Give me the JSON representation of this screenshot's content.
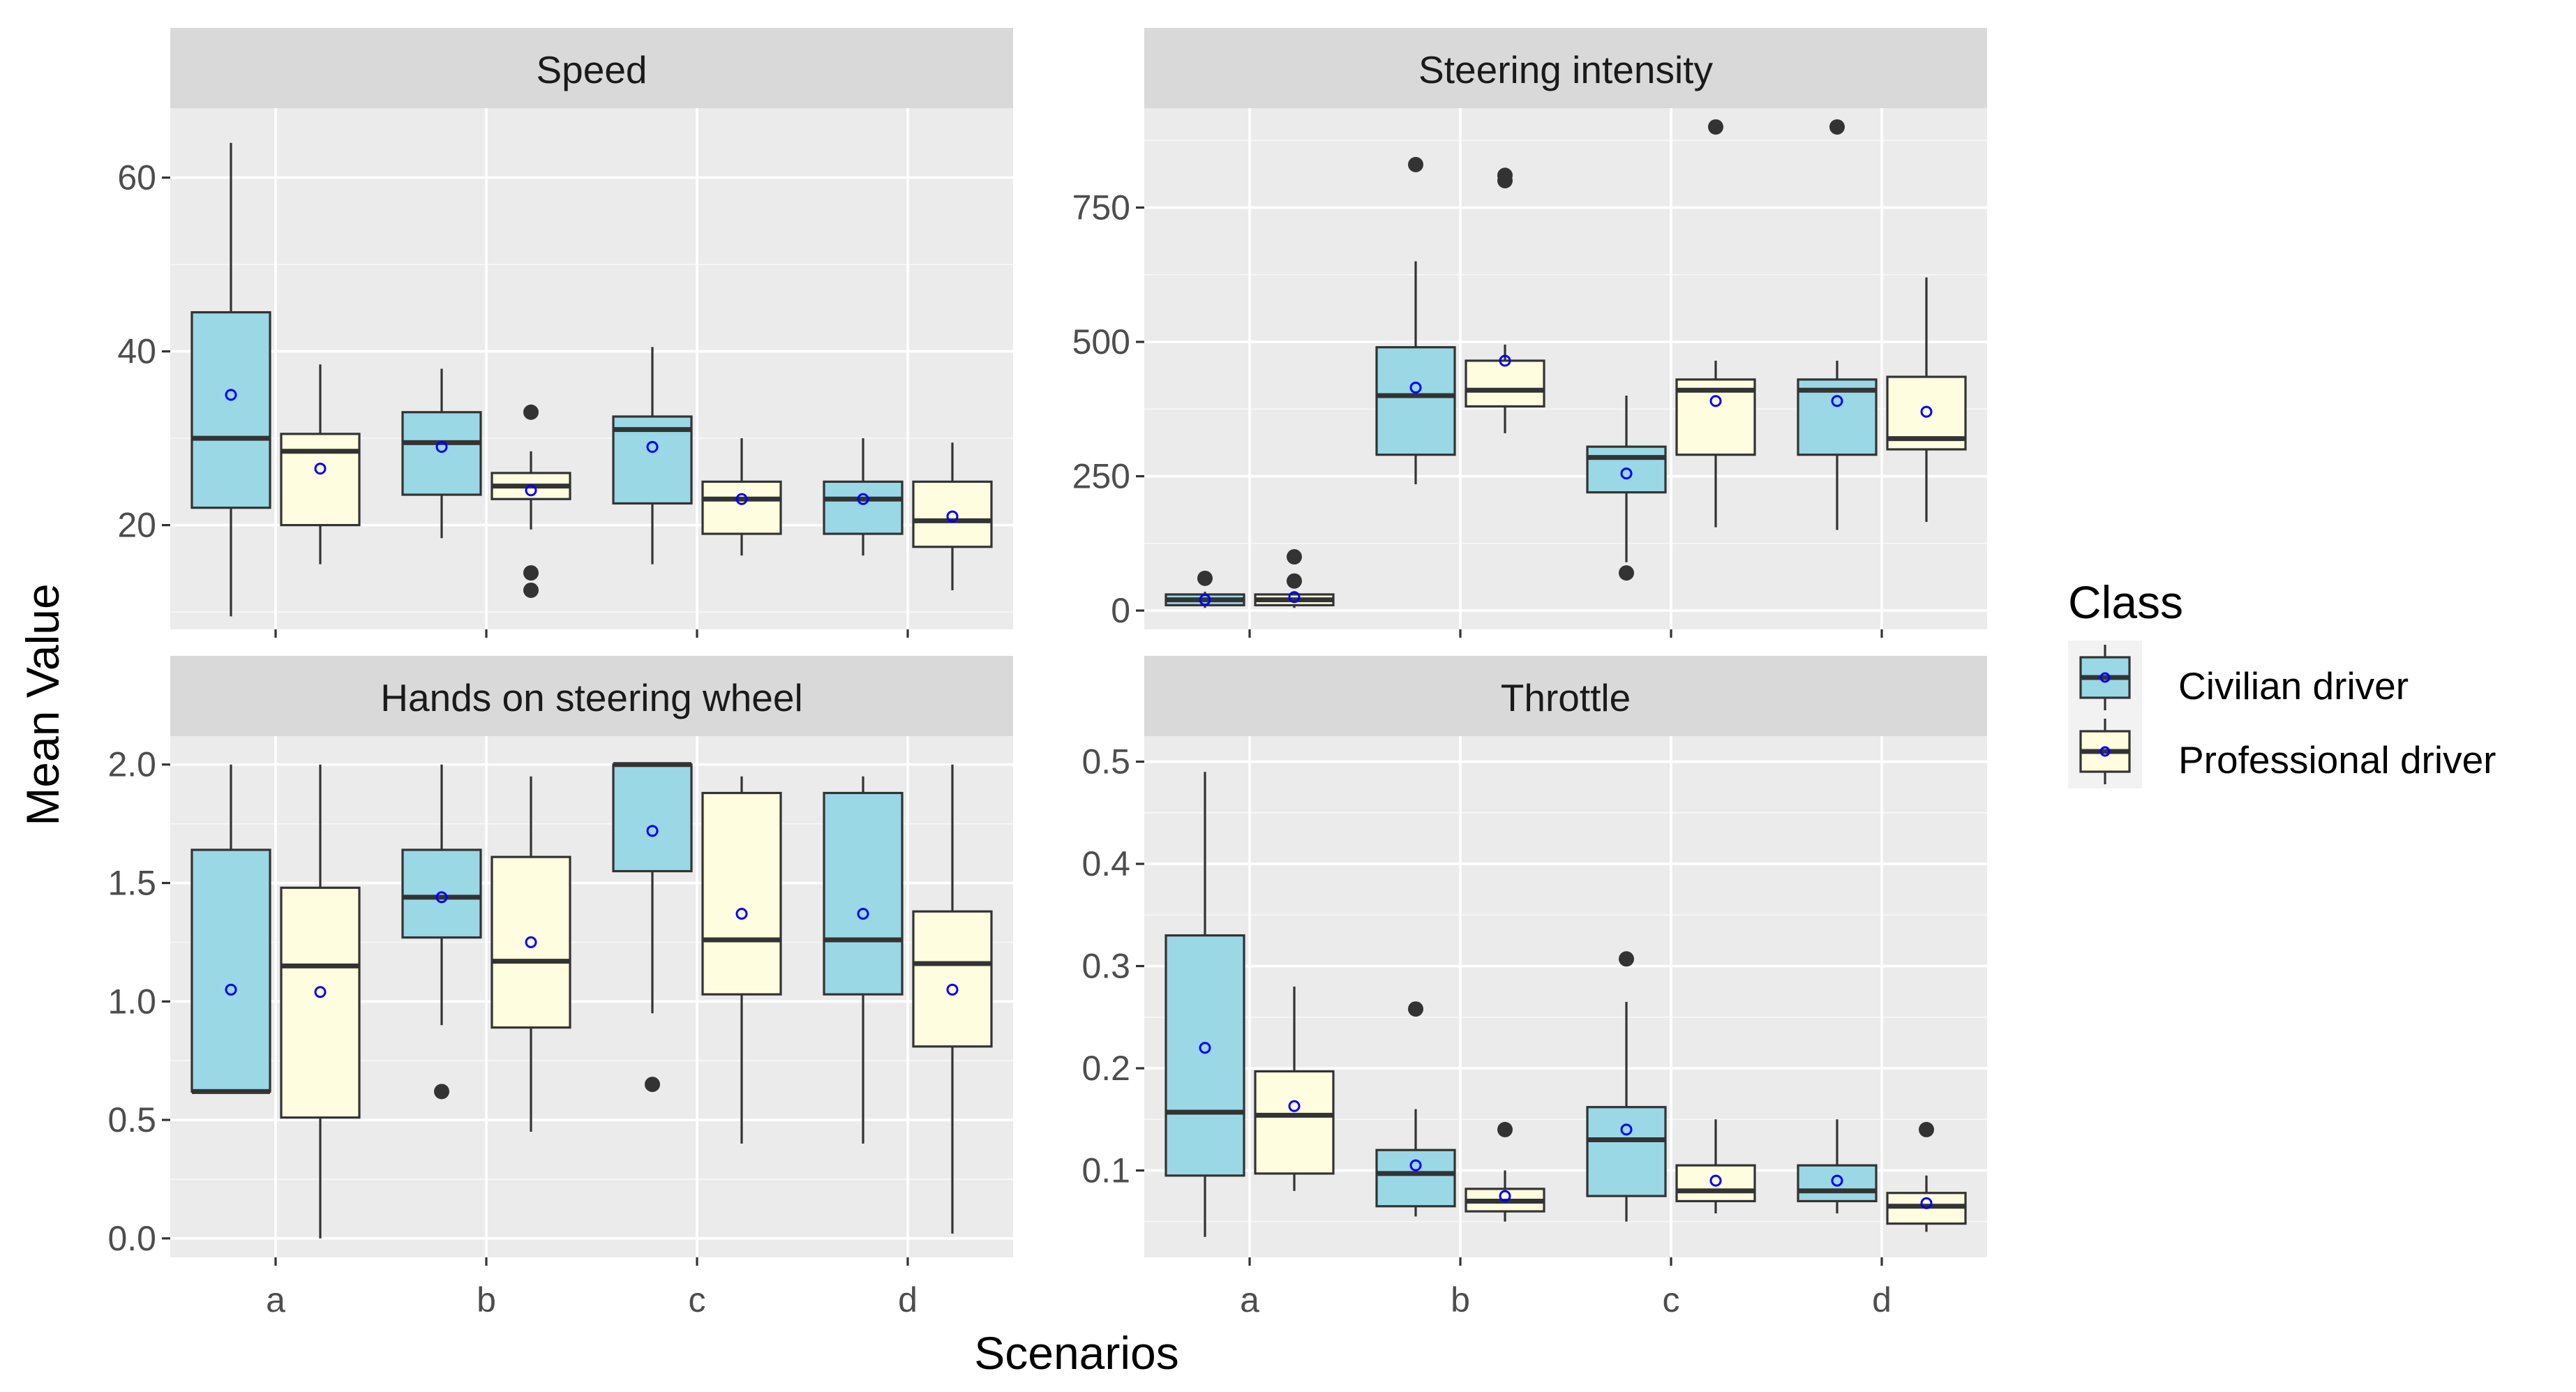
{
  "chart_data": {
    "type": "boxplot",
    "facets": [
      "Speed",
      "Steering intensity",
      "Hands on steering wheel",
      "Throttle"
    ],
    "xlabel": "Scenarios",
    "ylabel": "Mean Value",
    "categories": [
      "a",
      "b",
      "c",
      "d"
    ],
    "legend": {
      "title": "Class",
      "position": "right",
      "items": [
        {
          "name": "Civilian driver",
          "fill": "#9ad8e6"
        },
        {
          "name": "Professional driver",
          "fill": "#fffde0"
        }
      ]
    },
    "mean_marker_color": "#0000ff",
    "panels": [
      {
        "title": "Speed",
        "ylim": [
          8,
          68
        ],
        "yticks": [
          20,
          40,
          60
        ],
        "ytick_labels": [
          "20",
          "40",
          "60"
        ],
        "series": [
          {
            "name": "Civilian driver",
            "boxes": [
              {
                "category": "a",
                "min": 9.5,
                "q1": 22,
                "median": 30,
                "q3": 44.5,
                "max": 64,
                "mean": 35,
                "outliers": []
              },
              {
                "category": "b",
                "min": 18.5,
                "q1": 23.5,
                "median": 29.5,
                "q3": 33,
                "max": 38,
                "mean": 29,
                "outliers": []
              },
              {
                "category": "c",
                "min": 15.5,
                "q1": 22.5,
                "median": 31,
                "q3": 32.5,
                "max": 40.5,
                "mean": 29,
                "outliers": []
              },
              {
                "category": "d",
                "min": 16.5,
                "q1": 19,
                "median": 23,
                "q3": 25,
                "max": 30,
                "mean": 23,
                "outliers": []
              }
            ]
          },
          {
            "name": "Professional driver",
            "boxes": [
              {
                "category": "a",
                "min": 15.5,
                "q1": 20,
                "median": 28.5,
                "q3": 30.5,
                "max": 38.5,
                "mean": 26.5,
                "outliers": []
              },
              {
                "category": "b",
                "min": 19.5,
                "q1": 23,
                "median": 24.5,
                "q3": 26,
                "max": 28.5,
                "mean": 24,
                "outliers": [
                  33,
                  14.5,
                  12.5
                ]
              },
              {
                "category": "c",
                "min": 16.5,
                "q1": 19,
                "median": 23,
                "q3": 25,
                "max": 30,
                "mean": 23,
                "outliers": []
              },
              {
                "category": "d",
                "min": 12.5,
                "q1": 17.5,
                "median": 20.5,
                "q3": 25,
                "max": 29.5,
                "mean": 21,
                "outliers": []
              }
            ]
          }
        ]
      },
      {
        "title": "Steering intensity",
        "ylim": [
          -35,
          935
        ],
        "yticks": [
          0,
          250,
          500,
          750
        ],
        "ytick_labels": [
          "0",
          "250",
          "500",
          "750"
        ],
        "series": [
          {
            "name": "Civilian driver",
            "boxes": [
              {
                "category": "a",
                "min": 5,
                "q1": 10,
                "median": 20,
                "q3": 30,
                "max": 35,
                "mean": 20,
                "outliers": [
                  60
                ]
              },
              {
                "category": "b",
                "min": 235,
                "q1": 290,
                "median": 400,
                "q3": 490,
                "max": 650,
                "mean": 415,
                "outliers": [
                  830
                ]
              },
              {
                "category": "c",
                "min": 90,
                "q1": 220,
                "median": 285,
                "q3": 305,
                "max": 400,
                "mean": 255,
                "outliers": [
                  70
                ]
              },
              {
                "category": "d",
                "min": 150,
                "q1": 290,
                "median": 410,
                "q3": 430,
                "max": 465,
                "mean": 390,
                "outliers": [
                  900
                ]
              }
            ]
          },
          {
            "name": "Professional driver",
            "boxes": [
              {
                "category": "a",
                "min": 5,
                "q1": 10,
                "median": 20,
                "q3": 30,
                "max": 35,
                "mean": 25,
                "outliers": [
                  100,
                  55
                ]
              },
              {
                "category": "b",
                "min": 330,
                "q1": 380,
                "median": 410,
                "q3": 465,
                "max": 495,
                "mean": 465,
                "outliers": [
                  810,
                  800
                ]
              },
              {
                "category": "c",
                "min": 155,
                "q1": 290,
                "median": 410,
                "q3": 430,
                "max": 465,
                "mean": 390,
                "outliers": [
                  900
                ]
              },
              {
                "category": "d",
                "min": 165,
                "q1": 300,
                "median": 320,
                "q3": 435,
                "max": 620,
                "mean": 370,
                "outliers": []
              }
            ]
          }
        ]
      },
      {
        "title": "Hands on steering wheel",
        "ylim": [
          -0.08,
          2.12
        ],
        "yticks": [
          0.0,
          0.5,
          1.0,
          1.5,
          2.0
        ],
        "ytick_labels": [
          "0.0",
          "0.5",
          "1.0",
          "1.5",
          "2.0"
        ],
        "series": [
          {
            "name": "Civilian driver",
            "boxes": [
              {
                "category": "a",
                "min": 0.62,
                "q1": 0.62,
                "median": 0.62,
                "q3": 1.64,
                "max": 2.0,
                "mean": 1.05,
                "outliers": []
              },
              {
                "category": "b",
                "min": 0.9,
                "q1": 1.27,
                "median": 1.44,
                "q3": 1.64,
                "max": 2.0,
                "mean": 1.44,
                "outliers": [
                  0.62
                ]
              },
              {
                "category": "c",
                "min": 0.95,
                "q1": 1.55,
                "median": 2.0,
                "q3": 2.0,
                "max": 2.0,
                "mean": 1.72,
                "outliers": [
                  0.65
                ]
              },
              {
                "category": "d",
                "min": 0.4,
                "q1": 1.03,
                "median": 1.26,
                "q3": 1.88,
                "max": 1.95,
                "mean": 1.37,
                "outliers": []
              }
            ]
          },
          {
            "name": "Professional driver",
            "boxes": [
              {
                "category": "a",
                "min": 0.0,
                "q1": 0.51,
                "median": 1.15,
                "q3": 1.48,
                "max": 2.0,
                "mean": 1.04,
                "outliers": []
              },
              {
                "category": "b",
                "min": 0.45,
                "q1": 0.89,
                "median": 1.17,
                "q3": 1.61,
                "max": 1.95,
                "mean": 1.25,
                "outliers": []
              },
              {
                "category": "c",
                "min": 0.4,
                "q1": 1.03,
                "median": 1.26,
                "q3": 1.88,
                "max": 1.95,
                "mean": 1.37,
                "outliers": []
              },
              {
                "category": "d",
                "min": 0.02,
                "q1": 0.81,
                "median": 1.16,
                "q3": 1.38,
                "max": 2.0,
                "mean": 1.05,
                "outliers": []
              }
            ]
          }
        ]
      },
      {
        "title": "Throttle",
        "ylim": [
          0.015,
          0.525
        ],
        "yticks": [
          0.1,
          0.2,
          0.3,
          0.4,
          0.5
        ],
        "ytick_labels": [
          "0.1",
          "0.2",
          "0.3",
          "0.4",
          "0.5"
        ],
        "series": [
          {
            "name": "Civilian driver",
            "boxes": [
              {
                "category": "a",
                "min": 0.035,
                "q1": 0.095,
                "median": 0.157,
                "q3": 0.33,
                "max": 0.49,
                "mean": 0.22,
                "outliers": []
              },
              {
                "category": "b",
                "min": 0.055,
                "q1": 0.065,
                "median": 0.097,
                "q3": 0.12,
                "max": 0.16,
                "mean": 0.105,
                "outliers": [
                  0.258
                ]
              },
              {
                "category": "c",
                "min": 0.05,
                "q1": 0.075,
                "median": 0.13,
                "q3": 0.162,
                "max": 0.265,
                "mean": 0.14,
                "outliers": [
                  0.307
                ]
              },
              {
                "category": "d",
                "min": 0.058,
                "q1": 0.07,
                "median": 0.08,
                "q3": 0.105,
                "max": 0.15,
                "mean": 0.09,
                "outliers": []
              }
            ]
          },
          {
            "name": "Professional driver",
            "boxes": [
              {
                "category": "a",
                "min": 0.08,
                "q1": 0.097,
                "median": 0.154,
                "q3": 0.197,
                "max": 0.28,
                "mean": 0.163,
                "outliers": []
              },
              {
                "category": "b",
                "min": 0.05,
                "q1": 0.06,
                "median": 0.07,
                "q3": 0.082,
                "max": 0.1,
                "mean": 0.075,
                "outliers": [
                  0.14
                ]
              },
              {
                "category": "c",
                "min": 0.058,
                "q1": 0.07,
                "median": 0.08,
                "q3": 0.105,
                "max": 0.15,
                "mean": 0.09,
                "outliers": []
              },
              {
                "category": "d",
                "min": 0.04,
                "q1": 0.048,
                "median": 0.065,
                "q3": 0.078,
                "max": 0.095,
                "mean": 0.068,
                "outliers": [
                  0.14
                ]
              }
            ]
          }
        ]
      }
    ]
  }
}
